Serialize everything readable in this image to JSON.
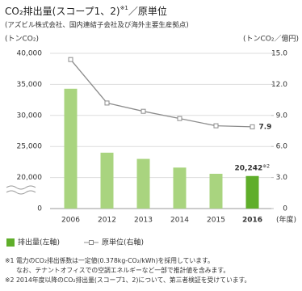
{
  "chart_data": {
    "type": "bar",
    "title": "CO₂排出量(スコープ1、2)",
    "title_note": "※1",
    "title_suffix": "／原単位",
    "subtitle": "(アズビル株式会社、国内連結子会社及び海外主要生産拠点)",
    "y_label": "(トンCO₂)",
    "y2_label": "(トンCO₂／億円)",
    "x_label": "(年度)",
    "categories": [
      "2006",
      "2012",
      "2013",
      "2014",
      "2015",
      "2016"
    ],
    "series": [
      {
        "name": "排出量(左軸)",
        "type": "bar",
        "color": "#a9d47f",
        "colors": [
          "#a9d47f",
          "#a9d47f",
          "#a9d47f",
          "#a9d47f",
          "#a9d47f",
          "#5fae2a"
        ],
        "values": [
          34300,
          24000,
          23000,
          21600,
          20600,
          20242
        ],
        "value_labels": [
          null,
          null,
          null,
          null,
          null,
          "20,242"
        ],
        "value_note": "※2"
      },
      {
        "name": "原単位(右軸)",
        "type": "line",
        "axis": "y2",
        "color": "#8c8c8c",
        "values": [
          14.4,
          10.2,
          9.4,
          8.7,
          8.0,
          7.9
        ]
      }
    ],
    "ylim": [
      0,
      40000
    ],
    "y_break": 20000,
    "yticks": [
      {
        "value": 0,
        "label": "0"
      },
      {
        "value": 20000,
        "label": "20,000"
      },
      {
        "value": 25000,
        "label": "25,000"
      },
      {
        "value": 30000,
        "label": "30,000"
      },
      {
        "value": 35000,
        "label": "35,000"
      },
      {
        "value": 40000,
        "label": "40,000"
      }
    ],
    "y2lim": [
      0,
      15
    ],
    "y2ticks": [
      {
        "value": 0,
        "label": "0"
      },
      {
        "value": 3,
        "label": "3.0"
      },
      {
        "value": 6,
        "label": "6.0"
      },
      {
        "value": 9,
        "label": "9.0"
      },
      {
        "value": 12,
        "label": "12.0"
      },
      {
        "value": 15,
        "label": "15.0"
      }
    ],
    "grid": true,
    "footnotes": [
      "※1 電力のCO₂排出係数は一定値(0.378kg-CO₂/kWh)を採用しています。",
      "なお、テナントオフィスでの空調エネルギーなど一部で推計値を含みます。",
      "※2 2014年度以降のCO₂排出量(スコープ1、2)について、第三者検証を受けています。"
    ]
  }
}
